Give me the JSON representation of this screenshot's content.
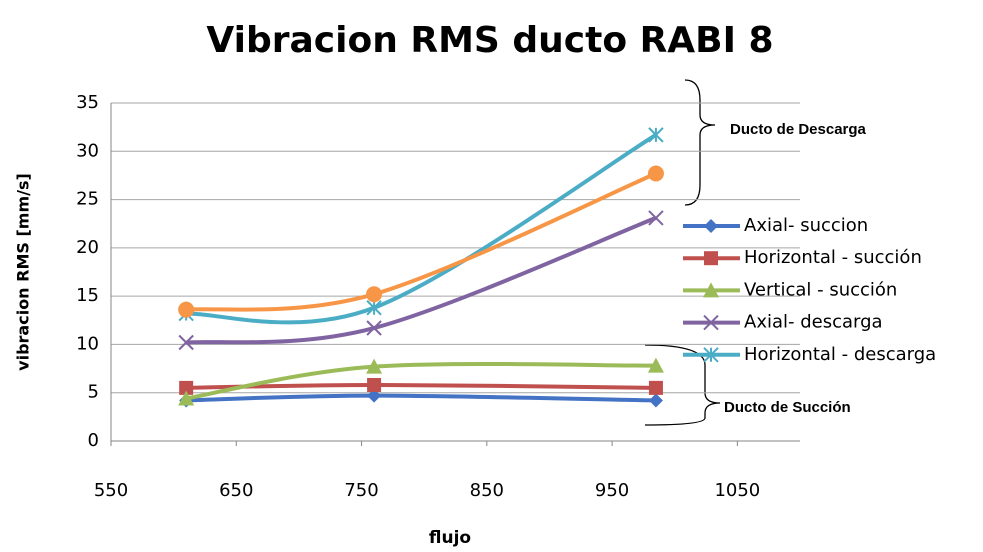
{
  "chart_data": {
    "type": "line",
    "title": "Vibracion RMS ducto RABI 8",
    "xlabel": "flujo",
    "ylabel": "vibracion RMS [mm/s]",
    "x": [
      610,
      760,
      985
    ],
    "xlim": [
      550,
      1100
    ],
    "xticks": [
      550,
      650,
      750,
      850,
      950,
      1050
    ],
    "ylim": [
      0,
      35
    ],
    "yticks": [
      0,
      5,
      10,
      15,
      20,
      25,
      30,
      35
    ],
    "grid": true,
    "smooth": true,
    "legend": "right",
    "series": [
      {
        "name": "Axial- succion",
        "color": "#4472c4",
        "marker": "diamond",
        "values": [
          4.2,
          4.7,
          4.2
        ]
      },
      {
        "name": "Horizontal - succión",
        "color": "#c0504d",
        "marker": "square",
        "values": [
          5.5,
          5.8,
          5.5
        ]
      },
      {
        "name": "Vertical - succión",
        "color": "#9bbb59",
        "marker": "triangle",
        "values": [
          4.4,
          7.7,
          7.8
        ]
      },
      {
        "name": "Axial- descarga",
        "color": "#8064a2",
        "marker": "x",
        "values": [
          10.2,
          11.7,
          23.1
        ]
      },
      {
        "name": "Horizontal - descarga",
        "color": "#4bacc6",
        "marker": "star",
        "values": [
          13.2,
          13.8,
          31.7
        ]
      },
      {
        "color": "#f79646",
        "marker": "circle",
        "values": [
          13.6,
          15.2,
          27.7
        ]
      }
    ],
    "annotations": [
      "Ducto de Descarga",
      "Ducto de Succión"
    ]
  }
}
